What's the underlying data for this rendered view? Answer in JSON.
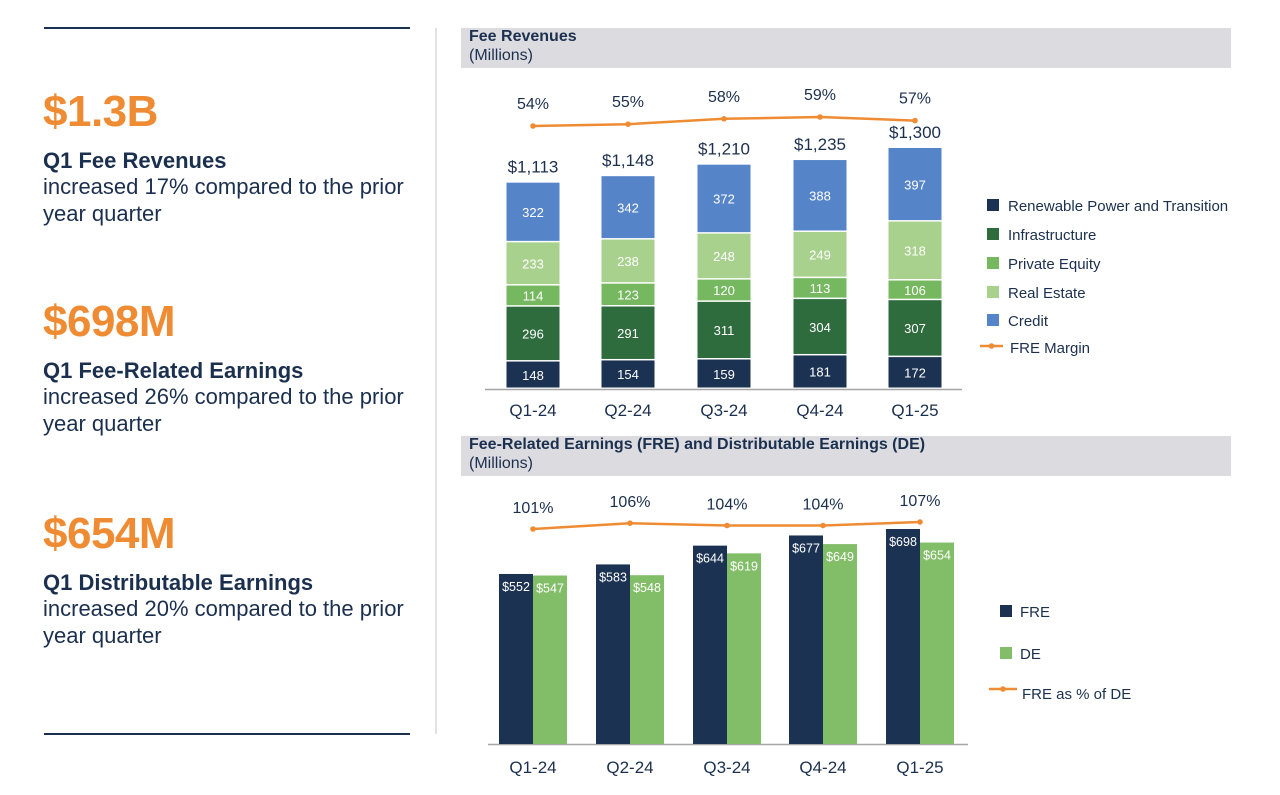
{
  "kpis": [
    {
      "value": "$1.3B",
      "title": "Q1 Fee Revenues",
      "desc1": "increased 17% compared to the prior",
      "desc2": "year quarter"
    },
    {
      "value": "$698M",
      "title": "Q1 Fee-Related Earnings",
      "desc1": "increased 26% compared to the prior",
      "desc2": "year quarter"
    },
    {
      "value": "$654M",
      "title": "Q1 Distributable Earnings",
      "desc1": "increased 20% compared to the prior",
      "desc2": "year quarter"
    }
  ],
  "colors": {
    "navy": "#1b3252",
    "dark_green": "#2e6b3d",
    "mid_green": "#76b860",
    "light_green": "#a9d18e",
    "blue": "#5584c8",
    "orange": "#ef8c33",
    "de_green": "#82bd68",
    "text": "#1b2f4e"
  },
  "chart_data": [
    {
      "type": "bar",
      "stacked": true,
      "title": "Fee Revenues",
      "subtitle": "(Millions)",
      "categories": [
        "Q1-24",
        "Q2-24",
        "Q3-24",
        "Q4-24",
        "Q1-25"
      ],
      "series": [
        {
          "name": "Renewable Power and Transition",
          "values": [
            148,
            154,
            159,
            181,
            172
          ]
        },
        {
          "name": "Infrastructure",
          "values": [
            296,
            291,
            311,
            304,
            307
          ]
        },
        {
          "name": "Private Equity",
          "values": [
            114,
            123,
            120,
            113,
            106
          ]
        },
        {
          "name": "Real Estate",
          "values": [
            233,
            238,
            248,
            249,
            318
          ]
        },
        {
          "name": "Credit",
          "values": [
            322,
            342,
            372,
            388,
            397
          ]
        }
      ],
      "totals": [
        "$1,113",
        "$1,148",
        "$1,210",
        "$1,235",
        "$1,300"
      ],
      "line": {
        "name": "FRE Margin",
        "values": [
          54,
          55,
          58,
          59,
          57
        ],
        "labels": [
          "54%",
          "55%",
          "58%",
          "59%",
          "57%"
        ]
      },
      "ylim": [
        0,
        1300
      ],
      "legend": "right"
    },
    {
      "type": "bar",
      "title": "Fee-Related Earnings (FRE) and Distributable Earnings (DE)",
      "subtitle": "(Millions)",
      "categories": [
        "Q1-24",
        "Q2-24",
        "Q3-24",
        "Q4-24",
        "Q1-25"
      ],
      "series": [
        {
          "name": "FRE",
          "values": [
            552,
            583,
            644,
            677,
            698
          ],
          "labels": [
            "$552",
            "$583",
            "$644",
            "$677",
            "$698"
          ]
        },
        {
          "name": "DE",
          "values": [
            547,
            548,
            619,
            649,
            654
          ],
          "labels": [
            "$547",
            "$548",
            "$619",
            "$649",
            "$654"
          ]
        }
      ],
      "line": {
        "name": "FRE as % of DE",
        "values": [
          101,
          106,
          104,
          104,
          107
        ],
        "labels": [
          "101%",
          "106%",
          "104%",
          "104%",
          "107%"
        ]
      },
      "ylim": [
        0,
        698
      ],
      "legend": "right"
    }
  ]
}
